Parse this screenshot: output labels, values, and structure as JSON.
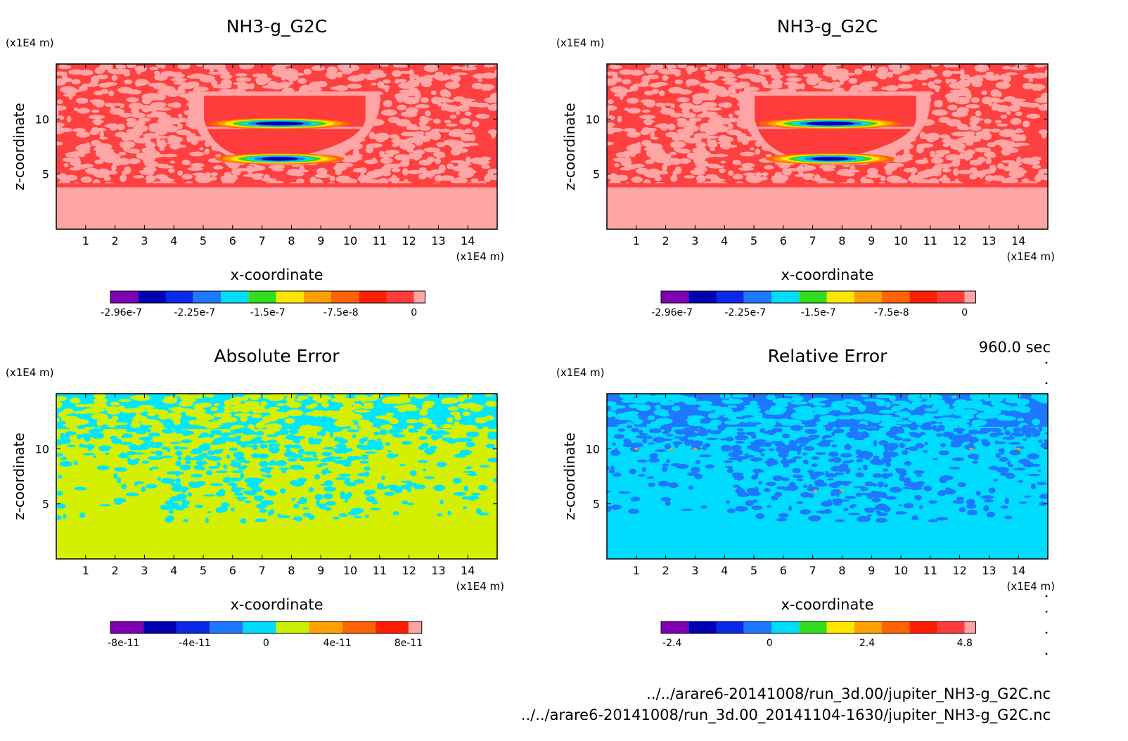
{
  "chart_data": [
    {
      "type": "heatmap",
      "title": "NH3-g_G2C",
      "xlabel": "x-coordinate",
      "ylabel": "z-coordinate",
      "x_unit": "(x1E4 m)",
      "y_unit": "(x1E4 m)",
      "xlim": [
        0,
        15
      ],
      "ylim": [
        0,
        15
      ],
      "x_ticks": [
        1,
        2,
        3,
        4,
        5,
        6,
        7,
        8,
        9,
        10,
        11,
        12,
        13,
        14
      ],
      "y_ticks": [
        5,
        10
      ],
      "colorbar": {
        "colors": [
          "#7f00b2",
          "#0000b2",
          "#0a28e6",
          "#1e78ff",
          "#00dcff",
          "#32dc1e",
          "#ffe600",
          "#ffa000",
          "#ff6400",
          "#ff1e00",
          "#ff3c3c",
          "#ffa5a5"
        ],
        "tick_labels": [
          "-2.96e-7",
          "-2.25e-7",
          "-1.5e-7",
          "-7.5e-8",
          "0"
        ]
      },
      "field": {
        "background_colors": [
          "#ff4040",
          "#ffa5a5"
        ],
        "lower_band_color": "#ffa5a5",
        "lower_band_top": 3.8,
        "trough": {
          "x": [
            4.5,
            11
          ],
          "z": [
            6,
            12.5
          ]
        },
        "minimum_bands": [
          {
            "x_center": 7.6,
            "z": 9.4
          },
          {
            "x_center": 7.6,
            "z": 6.2
          }
        ]
      }
    },
    {
      "type": "heatmap",
      "title": "NH3-g_G2C",
      "xlabel": "x-coordinate",
      "ylabel": "z-coordinate",
      "x_unit": "(x1E4 m)",
      "y_unit": "(x1E4 m)",
      "xlim": [
        0,
        15
      ],
      "ylim": [
        0,
        15
      ],
      "x_ticks": [
        1,
        2,
        3,
        4,
        5,
        6,
        7,
        8,
        9,
        10,
        11,
        12,
        13,
        14
      ],
      "y_ticks": [
        5,
        10
      ],
      "colorbar": {
        "colors": [
          "#7f00b2",
          "#0000b2",
          "#0a28e6",
          "#1e78ff",
          "#00dcff",
          "#32dc1e",
          "#ffe600",
          "#ffa000",
          "#ff6400",
          "#ff1e00",
          "#ff3c3c",
          "#ffa5a5"
        ],
        "tick_labels": [
          "-2.96e-7",
          "-2.25e-7",
          "-1.5e-7",
          "-7.5e-8",
          "0"
        ]
      },
      "field": {
        "background_colors": [
          "#ff4040",
          "#ffa5a5"
        ],
        "lower_band_color": "#ffa5a5",
        "lower_band_top": 3.8,
        "trough": {
          "x": [
            4.5,
            11
          ],
          "z": [
            6,
            12.5
          ]
        },
        "minimum_bands": [
          {
            "x_center": 7.6,
            "z": 9.4
          },
          {
            "x_center": 7.6,
            "z": 6.2
          }
        ]
      }
    },
    {
      "type": "heatmap",
      "title": "Absolute Error",
      "xlabel": "x-coordinate",
      "ylabel": "z-coordinate",
      "x_unit": "(x1E4 m)",
      "y_unit": "(x1E4 m)",
      "xlim": [
        0,
        15
      ],
      "ylim": [
        0,
        15
      ],
      "x_ticks": [
        1,
        2,
        3,
        4,
        5,
        6,
        7,
        8,
        9,
        10,
        11,
        12,
        13,
        14
      ],
      "y_ticks": [
        5,
        10
      ],
      "colorbar": {
        "colors": [
          "#7f00b2",
          "#0000b2",
          "#0a28e6",
          "#1e78ff",
          "#00dcff",
          "#c8f000",
          "#ffa000",
          "#ff6400",
          "#ff1e00",
          "#ffa5a5"
        ],
        "tick_labels": [
          "-8e-11",
          "-4e-11",
          "0",
          "4e-11",
          "8e-11"
        ]
      },
      "field": {
        "background_colors": [
          "#d4f000",
          "#00e6ff"
        ],
        "upper_band_color": "#00e6ff",
        "upper_band_bottom": 11.8
      }
    },
    {
      "type": "heatmap",
      "title": "Relative Error",
      "xlabel": "x-coordinate",
      "ylabel": "z-coordinate",
      "x_unit": "(x1E4 m)",
      "y_unit": "(x1E4 m)",
      "xlim": [
        0,
        15
      ],
      "ylim": [
        0,
        15
      ],
      "x_ticks": [
        1,
        2,
        3,
        4,
        5,
        6,
        7,
        8,
        9,
        10,
        11,
        12,
        13,
        14
      ],
      "y_ticks": [
        5,
        10
      ],
      "colorbar": {
        "colors": [
          "#7f00b2",
          "#0000b2",
          "#0a28e6",
          "#1e78ff",
          "#00dcff",
          "#32dc1e",
          "#ffe600",
          "#ffa000",
          "#ff6400",
          "#ff1e00",
          "#ff3c3c",
          "#ffa5a5"
        ],
        "tick_labels": [
          "-2.4",
          "0",
          "2.4",
          "4.8"
        ]
      },
      "field": {
        "background_colors": [
          "#00dcff",
          "#1e78ff"
        ],
        "upper_band_color": "#1e78ff",
        "upper_band_bottom": 12.0
      }
    }
  ],
  "time_label": "960.0 sec",
  "footer": {
    "file1": "../../arare6-20141008/run_3d.00/jupiter_NH3-g_G2C.nc",
    "file2": "../../arare6-20141008/run_3d.00_20141104-1630/jupiter_NH3-g_G2C.nc"
  }
}
